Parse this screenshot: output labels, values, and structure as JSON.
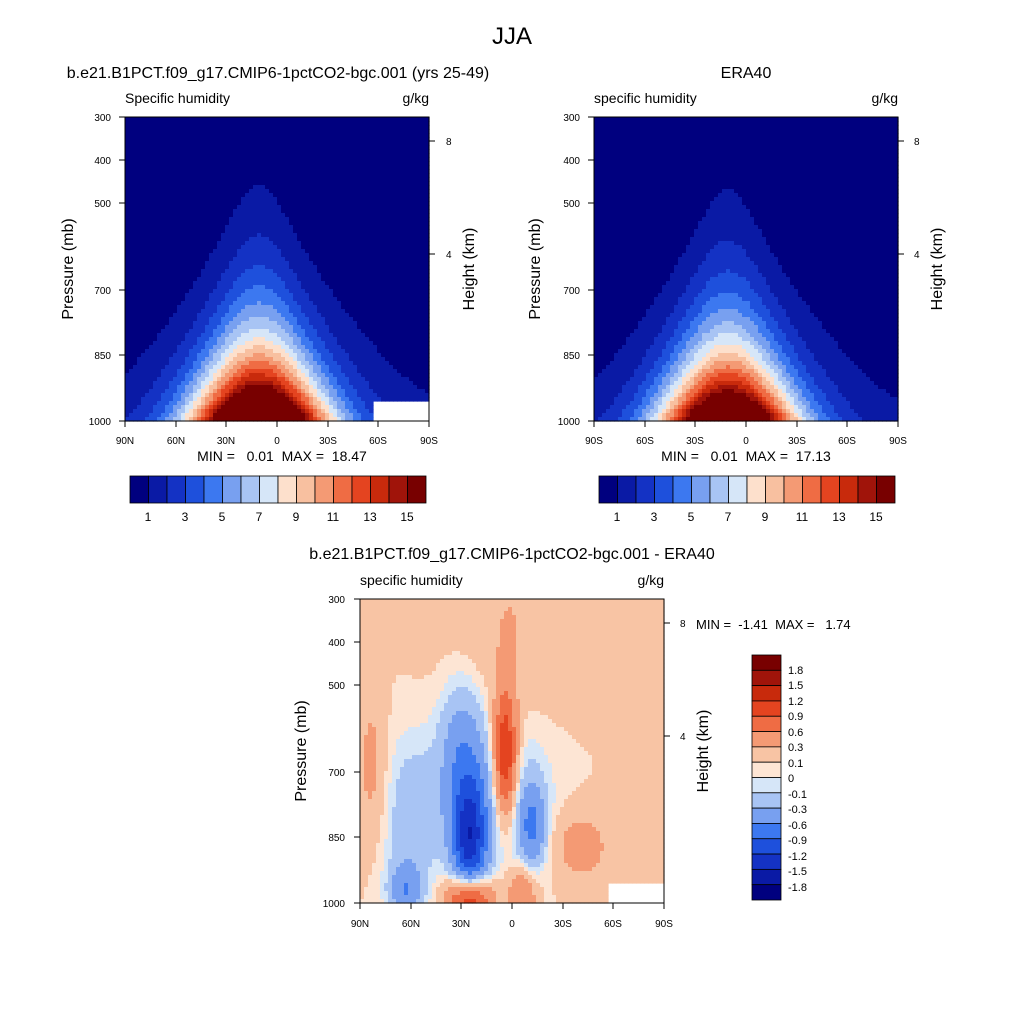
{
  "figure": {
    "title": "JJA"
  },
  "palettes": {
    "abs": [
      "#00007f",
      "#0a1aa5",
      "#1432c4",
      "#1e50dc",
      "#3c78f0",
      "#78a0f0",
      "#a8c4f4",
      "#d6e6f8",
      "#fde0cc",
      "#f8c0a0",
      "#f49a74",
      "#ef6c44",
      "#e44420",
      "#c82a0c",
      "#a0140a",
      "#780000"
    ],
    "diff": [
      "#00007f",
      "#0a1aa5",
      "#1432c4",
      "#1e50dc",
      "#3c78f0",
      "#78a0f0",
      "#a8c4f4",
      "#d6e6f8",
      "#fde5d4",
      "#f8c4a4",
      "#f49a74",
      "#ef6c44",
      "#e44420",
      "#c82a0c",
      "#a0140a",
      "#780000"
    ]
  },
  "panels": {
    "model": {
      "title": "b.e21.B1PCT.f09_g17.CMIP6-1pctCO2-bgc.001 (yrs 25-49)",
      "left_label": "Specific humidity",
      "units": "g/kg",
      "ylabel": "Pressure (mb)",
      "ylabel_right": "Height (km)",
      "yticks": [
        "300",
        "400",
        "500",
        "700",
        "850",
        "1000"
      ],
      "yticks_right": [
        "8",
        "4"
      ],
      "xticks": [
        "90N",
        "60N",
        "30N",
        "0",
        "30S",
        "60S",
        "90S"
      ],
      "stats": "MIN =   0.01  MAX =  18.47",
      "colorbar_labels": [
        "1",
        "3",
        "5",
        "7",
        "9",
        "11",
        "13",
        "15"
      ]
    },
    "obs": {
      "title": "ERA40",
      "left_label": "specific humidity",
      "units": "g/kg",
      "ylabel": "Pressure (mb)",
      "ylabel_right": "Height (km)",
      "yticks": [
        "300",
        "400",
        "500",
        "700",
        "850",
        "1000"
      ],
      "yticks_right": [
        "8",
        "4"
      ],
      "xticks": [
        "90S",
        "60S",
        "30S",
        "0",
        "30S",
        "60S",
        "90S"
      ],
      "stats": "MIN =   0.01  MAX =  17.13",
      "colorbar_labels": [
        "1",
        "3",
        "5",
        "7",
        "9",
        "11",
        "13",
        "15"
      ]
    },
    "diff": {
      "title": "b.e21.B1PCT.f09_g17.CMIP6-1pctCO2-bgc.001 - ERA40",
      "left_label": "specific humidity",
      "units": "g/kg",
      "ylabel": "Pressure (mb)",
      "ylabel_right": "Height (km)",
      "yticks": [
        "300",
        "400",
        "500",
        "700",
        "850",
        "1000"
      ],
      "yticks_right": [
        "8",
        "4"
      ],
      "xticks": [
        "90N",
        "60N",
        "30N",
        "0",
        "30S",
        "60S",
        "90S"
      ],
      "stats": "MIN =  -1.41  MAX =   1.74",
      "colorbar_labels": [
        "1.8",
        "1.5",
        "1.2",
        "0.9",
        "0.6",
        "0.3",
        "0.1",
        "0",
        "-0.1",
        "-0.3",
        "-0.6",
        "-0.9",
        "-1.2",
        "-1.5",
        "-1.8"
      ]
    }
  },
  "chart_data": [
    {
      "type": "heatmap",
      "title": "b.e21.B1PCT.f09_g17.CMIP6-1pctCO2-bgc.001 (yrs 25-49)",
      "variable": "Specific humidity",
      "units": "g/kg",
      "xlabel": "",
      "ylabel": "Pressure (mb)",
      "ylabel_right": "Height (km)",
      "x_ticks": [
        "90N",
        "60N",
        "30N",
        "0",
        "30S",
        "60S",
        "90S"
      ],
      "y_ticks": [
        300,
        400,
        500,
        700,
        850,
        1000
      ],
      "y_scale": "log-pressure",
      "contour_levels": [
        1,
        2,
        3,
        4,
        5,
        6,
        7,
        8,
        9,
        10,
        11,
        12,
        13,
        14,
        15
      ],
      "min": 0.01,
      "max": 18.47,
      "peak": {
        "lat": 12,
        "p": 1000,
        "value": 18.47
      },
      "missing_region": "below surface south of ~55S (Antarctica)"
    },
    {
      "type": "heatmap",
      "title": "ERA40",
      "variable": "specific humidity",
      "units": "g/kg",
      "xlabel": "",
      "ylabel": "Pressure (mb)",
      "ylabel_right": "Height (km)",
      "x_ticks": [
        "90S",
        "60S",
        "30S",
        "0",
        "30S",
        "60S",
        "90S"
      ],
      "y_ticks": [
        300,
        400,
        500,
        700,
        850,
        1000
      ],
      "y_scale": "log-pressure",
      "contour_levels": [
        1,
        2,
        3,
        4,
        5,
        6,
        7,
        8,
        9,
        10,
        11,
        12,
        13,
        14,
        15
      ],
      "min": 0.01,
      "max": 17.13,
      "peak": {
        "lat": 12,
        "p": 1000,
        "value": 17.13
      }
    },
    {
      "type": "heatmap",
      "title": "b.e21.B1PCT.f09_g17.CMIP6-1pctCO2-bgc.001 - ERA40",
      "variable": "specific humidity",
      "units": "g/kg",
      "xlabel": "",
      "ylabel": "Pressure (mb)",
      "ylabel_right": "Height (km)",
      "x_ticks": [
        "90N",
        "60N",
        "30N",
        "0",
        "30S",
        "60S",
        "90S"
      ],
      "y_ticks": [
        300,
        400,
        500,
        700,
        850,
        1000
      ],
      "y_scale": "log-pressure",
      "contour_levels": [
        -1.8,
        -1.5,
        -1.2,
        -0.9,
        -0.6,
        -0.3,
        -0.1,
        0,
        0.1,
        0.3,
        0.6,
        0.9,
        1.2,
        1.5,
        1.8
      ],
      "min": -1.41,
      "max": 1.74,
      "features": [
        {
          "lat": 4,
          "p": 550,
          "value": 1.2
        },
        {
          "lat": 25,
          "p": 800,
          "value": -1.2
        },
        {
          "lat": 25,
          "p": 980,
          "value": 1.2
        },
        {
          "lat": -12,
          "p": 730,
          "value": -0.6
        },
        {
          "lat": -40,
          "p": 800,
          "value": 0.3
        }
      ],
      "missing_region": "below surface south of ~55S (Antarctica)"
    }
  ]
}
